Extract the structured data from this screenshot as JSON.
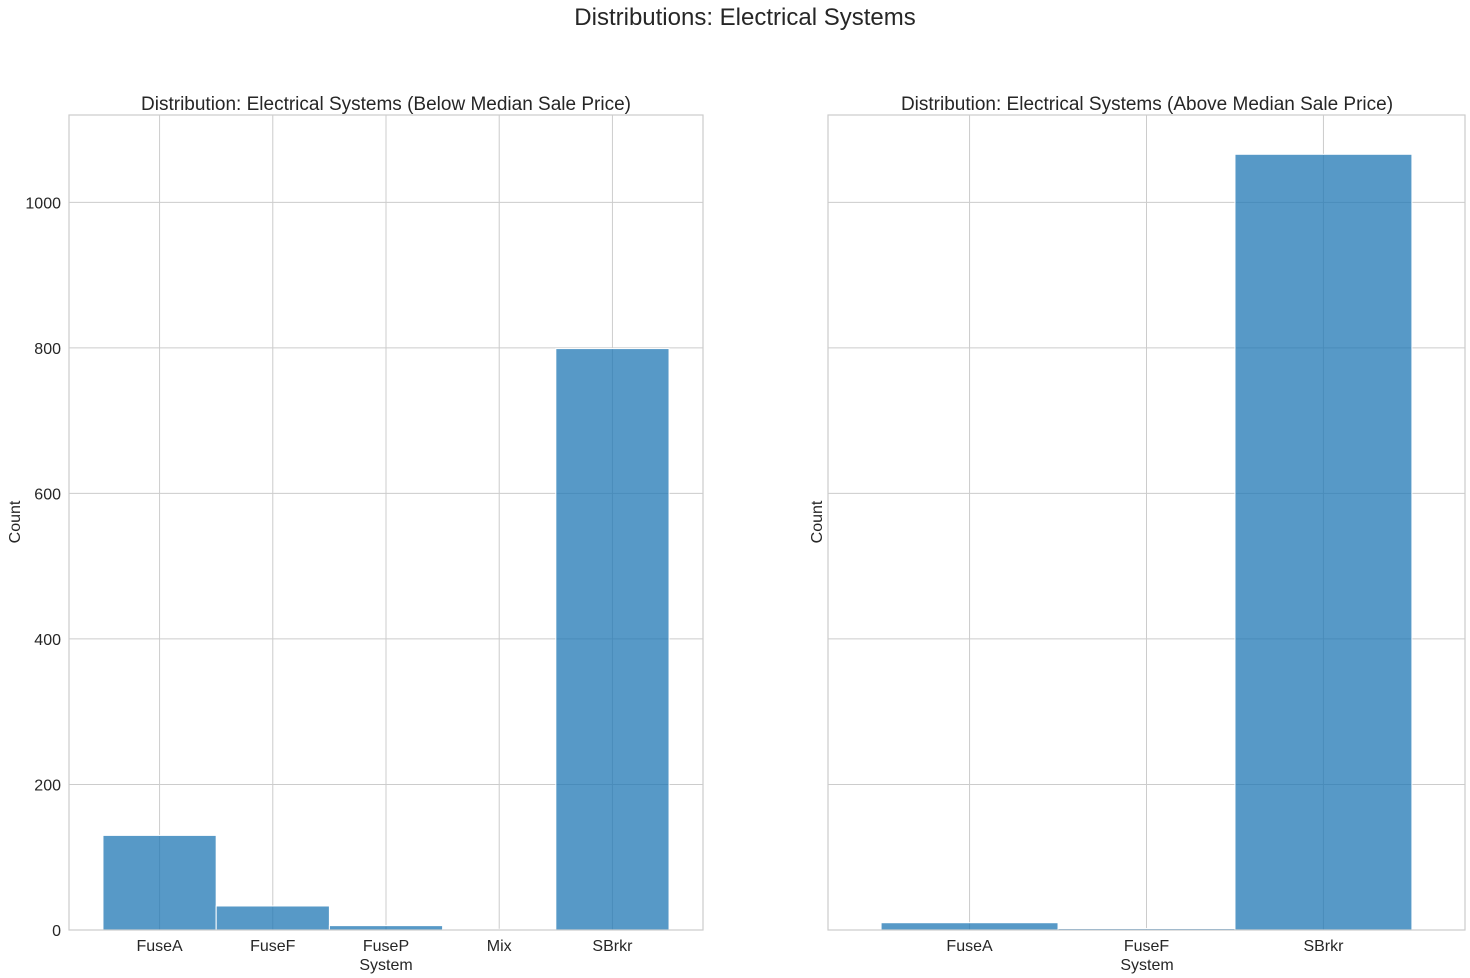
{
  "figure": {
    "title": "Distributions: Electrical Systems"
  },
  "chart_data": [
    {
      "type": "bar",
      "title": "Distribution: Electrical Systems (Below Median Sale Price)",
      "xlabel": "System",
      "ylabel": "Count",
      "categories": [
        "FuseA",
        "FuseF",
        "FuseP",
        "Mix",
        "SBrkr"
      ],
      "values": [
        130,
        33,
        6,
        1,
        799
      ],
      "ylim": [
        0,
        1120
      ],
      "yticks": [
        0,
        200,
        400,
        600,
        800,
        1000
      ],
      "grid": true,
      "bar_color": "#1f77b4",
      "show_ytick_labels": true
    },
    {
      "type": "bar",
      "title": "Distribution: Electrical Systems (Above Median Sale Price)",
      "xlabel": "System",
      "ylabel": "Count",
      "categories": [
        "FuseA",
        "FuseF",
        "SBrkr"
      ],
      "values": [
        10,
        2,
        1066
      ],
      "ylim": [
        0,
        1120
      ],
      "yticks": [
        0,
        200,
        400,
        600,
        800,
        1000
      ],
      "grid": true,
      "bar_color": "#1f77b4",
      "show_ytick_labels": false
    }
  ]
}
